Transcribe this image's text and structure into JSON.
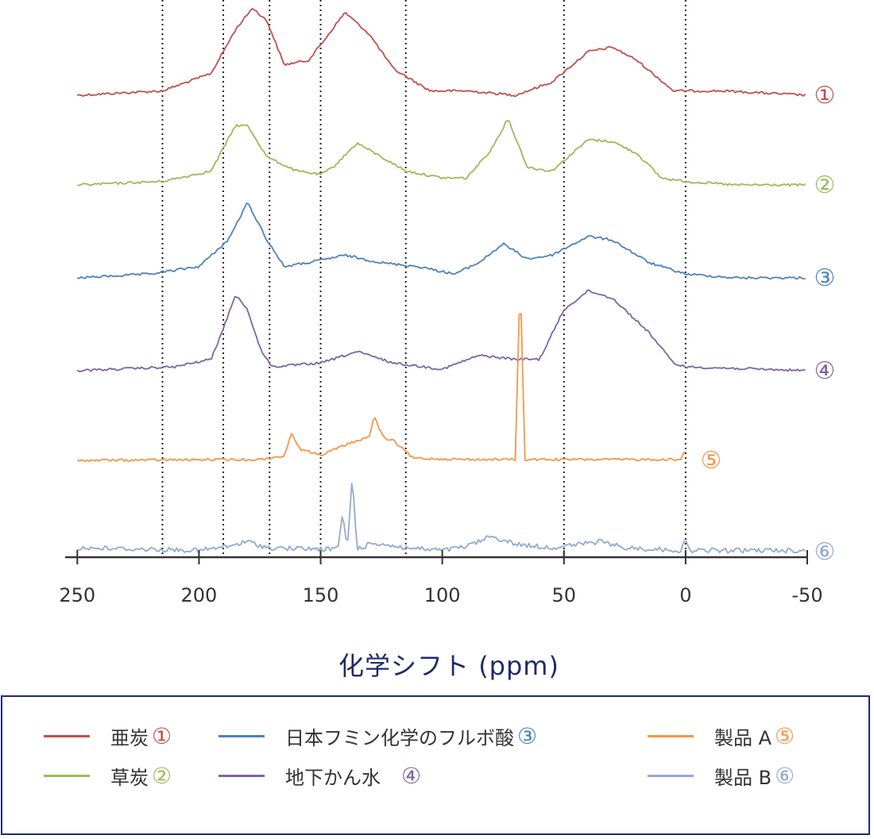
{
  "chart_data": {
    "type": "line",
    "xlabel": "化学シフト (ppm)",
    "xlim": [
      255,
      -50
    ],
    "x_ticks": [
      "250",
      "200",
      "150",
      "100",
      "50",
      "0",
      "-50"
    ],
    "reference_lines_ppm": [
      215,
      190,
      171,
      150,
      115,
      50,
      0
    ],
    "grid": false,
    "legend_position": "bottom",
    "series": [
      {
        "name": "亜炭",
        "marker": "①",
        "color": "#c0504d",
        "peaks": [
          [
            250,
            0
          ],
          [
            215,
            0.05
          ],
          [
            195,
            0.25
          ],
          [
            185,
            0.75
          ],
          [
            178,
            1.0
          ],
          [
            172,
            0.85
          ],
          [
            165,
            0.35
          ],
          [
            155,
            0.4
          ],
          [
            148,
            0.65
          ],
          [
            140,
            0.95
          ],
          [
            130,
            0.7
          ],
          [
            120,
            0.3
          ],
          [
            105,
            0.05
          ],
          [
            90,
            0.05
          ],
          [
            70,
            0
          ],
          [
            55,
            0.15
          ],
          [
            40,
            0.5
          ],
          [
            30,
            0.55
          ],
          [
            20,
            0.4
          ],
          [
            5,
            0.05
          ],
          [
            0,
            0.05
          ],
          [
            -15,
            0.05
          ],
          [
            -50,
            0
          ]
        ]
      },
      {
        "name": "草炭",
        "marker": "②",
        "color": "#9bbb59",
        "peaks": [
          [
            250,
            0
          ],
          [
            215,
            0.05
          ],
          [
            195,
            0.2
          ],
          [
            185,
            0.85
          ],
          [
            180,
            0.85
          ],
          [
            172,
            0.4
          ],
          [
            160,
            0.2
          ],
          [
            150,
            0.15
          ],
          [
            145,
            0.25
          ],
          [
            135,
            0.6
          ],
          [
            125,
            0.4
          ],
          [
            115,
            0.2
          ],
          [
            100,
            0.1
          ],
          [
            90,
            0.1
          ],
          [
            80,
            0.5
          ],
          [
            73,
            0.95
          ],
          [
            65,
            0.25
          ],
          [
            55,
            0.2
          ],
          [
            40,
            0.65
          ],
          [
            30,
            0.62
          ],
          [
            20,
            0.45
          ],
          [
            10,
            0.1
          ],
          [
            0,
            0.05
          ],
          [
            -20,
            0
          ],
          [
            -50,
            0
          ]
        ]
      },
      {
        "name": "日本フミン化学のフルボ酸",
        "marker": "③",
        "color": "#4f81bd",
        "peaks": [
          [
            250,
            0
          ],
          [
            220,
            0.05
          ],
          [
            200,
            0.15
          ],
          [
            188,
            0.5
          ],
          [
            180,
            1.0
          ],
          [
            172,
            0.5
          ],
          [
            165,
            0.15
          ],
          [
            155,
            0.2
          ],
          [
            140,
            0.3
          ],
          [
            125,
            0.2
          ],
          [
            110,
            0.15
          ],
          [
            95,
            0.05
          ],
          [
            85,
            0.2
          ],
          [
            75,
            0.45
          ],
          [
            65,
            0.25
          ],
          [
            55,
            0.3
          ],
          [
            40,
            0.55
          ],
          [
            30,
            0.5
          ],
          [
            15,
            0.2
          ],
          [
            0,
            0.05
          ],
          [
            -20,
            0
          ],
          [
            -50,
            0
          ]
        ]
      },
      {
        "name": "地下かん水",
        "marker": "④",
        "color": "#8064a2",
        "peaks": [
          [
            250,
            0
          ],
          [
            210,
            0.05
          ],
          [
            195,
            0.15
          ],
          [
            190,
            0.55
          ],
          [
            185,
            1.0
          ],
          [
            180,
            0.8
          ],
          [
            175,
            0.3
          ],
          [
            170,
            0.05
          ],
          [
            150,
            0.1
          ],
          [
            135,
            0.25
          ],
          [
            120,
            0.1
          ],
          [
            100,
            0.02
          ],
          [
            85,
            0.2
          ],
          [
            70,
            0.15
          ],
          [
            60,
            0.15
          ],
          [
            50,
            0.8
          ],
          [
            40,
            1.05
          ],
          [
            30,
            0.95
          ],
          [
            15,
            0.5
          ],
          [
            5,
            0.1
          ],
          [
            0,
            0.05
          ],
          [
            -50,
            0
          ]
        ]
      },
      {
        "name": "製品 A",
        "marker": "⑤",
        "color": "#f79646",
        "peaks": [
          [
            250,
            0
          ],
          [
            175,
            0.02
          ],
          [
            165,
            0.1
          ],
          [
            162,
            0.6
          ],
          [
            158,
            0.25
          ],
          [
            150,
            0.12
          ],
          [
            140,
            0.35
          ],
          [
            130,
            0.55
          ],
          [
            128,
            1.0
          ],
          [
            124,
            0.5
          ],
          [
            120,
            0.45
          ],
          [
            112,
            0.05
          ],
          [
            90,
            0.02
          ],
          [
            70,
            0.02
          ],
          [
            68,
            4.2
          ],
          [
            66,
            0.02
          ],
          [
            40,
            0.02
          ],
          [
            2,
            0.02
          ],
          [
            0,
            0.25
          ]
        ]
      },
      {
        "name": "製品 B",
        "marker": "⑥",
        "color": "#95a9d0",
        "peaks": [
          [
            250,
            0.15
          ],
          [
            200,
            0.05
          ],
          [
            188,
            0.2
          ],
          [
            180,
            0.4
          ],
          [
            172,
            0.15
          ],
          [
            150,
            0.1
          ],
          [
            143,
            0.1
          ],
          [
            141,
            1.5
          ],
          [
            139,
            0.1
          ],
          [
            137,
            3.0
          ],
          [
            135,
            0.1
          ],
          [
            128,
            0.35
          ],
          [
            115,
            0.15
          ],
          [
            100,
            0.05
          ],
          [
            90,
            0.2
          ],
          [
            80,
            0.6
          ],
          [
            70,
            0.3
          ],
          [
            55,
            0.15
          ],
          [
            35,
            0.4
          ],
          [
            25,
            0.15
          ],
          [
            2,
            0.05
          ],
          [
            0,
            0.4
          ],
          [
            -2,
            0.05
          ],
          [
            -50,
            0.05
          ]
        ]
      }
    ]
  }
}
